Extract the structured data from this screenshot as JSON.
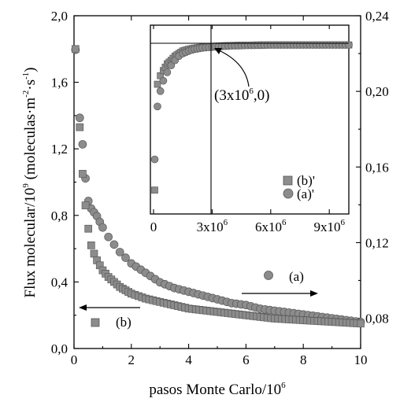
{
  "chart_data": {
    "type": "scatter",
    "xlabel": "pasos Monte Carlo/10",
    "xlabel_sup": "6",
    "ylabel_left": "Flux molecular/10",
    "ylabel_left_sup": "9",
    "ylabel_left_units": "(moleculas·m",
    "ylabel_left_units_sup1": "-2",
    "ylabel_left_units_mid": "·s",
    "ylabel_left_units_sup2": "-1",
    "ylabel_left_units_end": ")",
    "xlim": [
      0,
      10
    ],
    "ylim_left": [
      0,
      2.0
    ],
    "ylim_right": [
      0.064,
      0.24
    ],
    "x_ticks": [
      "0",
      "2",
      "4",
      "6",
      "8",
      "10"
    ],
    "y_left_ticks": [
      "0,0",
      "0,4",
      "0,8",
      "1,2",
      "1,6",
      "2,0"
    ],
    "y_right_ticks": [
      "0,08",
      "0,12",
      "0,16",
      "0,20",
      "0,24"
    ],
    "series": [
      {
        "name": "(a)",
        "marker": "circle",
        "axis": "right",
        "color": "#8c8c8c",
        "points": [
          [
            0.05,
            0.222
          ],
          [
            0.2,
            0.186
          ],
          [
            0.3,
            0.172
          ],
          [
            0.4,
            0.154
          ],
          [
            0.5,
            0.142
          ],
          [
            0.6,
            0.138
          ],
          [
            0.7,
            0.136
          ],
          [
            0.8,
            0.134
          ],
          [
            0.9,
            0.131
          ],
          [
            1.0,
            0.128
          ],
          [
            1.2,
            0.123
          ],
          [
            1.4,
            0.119
          ],
          [
            1.6,
            0.115
          ],
          [
            1.8,
            0.112
          ],
          [
            2.0,
            0.109
          ],
          [
            2.5,
            0.104
          ],
          [
            3.0,
            0.099
          ],
          [
            3.5,
            0.096
          ],
          [
            4.0,
            0.094
          ],
          [
            4.5,
            0.092
          ],
          [
            5.0,
            0.09
          ],
          [
            5.5,
            0.088
          ],
          [
            6.0,
            0.087
          ],
          [
            6.5,
            0.085
          ],
          [
            7.0,
            0.084
          ],
          [
            7.5,
            0.083
          ],
          [
            8.0,
            0.082
          ],
          [
            8.5,
            0.081
          ],
          [
            9.0,
            0.08
          ],
          [
            9.5,
            0.079
          ],
          [
            10.0,
            0.078
          ]
        ]
      },
      {
        "name": "(b)",
        "marker": "square",
        "axis": "left",
        "color": "#8c8c8c",
        "points": [
          [
            0.05,
            1.8
          ],
          [
            0.2,
            1.33
          ],
          [
            0.3,
            1.05
          ],
          [
            0.4,
            0.86
          ],
          [
            0.5,
            0.72
          ],
          [
            0.6,
            0.62
          ],
          [
            0.7,
            0.57
          ],
          [
            0.8,
            0.53
          ],
          [
            0.9,
            0.5
          ],
          [
            1.0,
            0.47
          ],
          [
            1.2,
            0.43
          ],
          [
            1.4,
            0.4
          ],
          [
            1.6,
            0.37
          ],
          [
            1.8,
            0.35
          ],
          [
            2.0,
            0.33
          ],
          [
            2.5,
            0.3
          ],
          [
            3.0,
            0.28
          ],
          [
            3.5,
            0.26
          ],
          [
            4.0,
            0.24
          ],
          [
            4.5,
            0.23
          ],
          [
            5.0,
            0.22
          ],
          [
            5.5,
            0.21
          ],
          [
            6.0,
            0.2
          ],
          [
            6.5,
            0.19
          ],
          [
            7.0,
            0.18
          ],
          [
            7.5,
            0.175
          ],
          [
            8.0,
            0.17
          ],
          [
            8.5,
            0.165
          ],
          [
            9.0,
            0.16
          ],
          [
            9.5,
            0.155
          ],
          [
            10.0,
            0.15
          ]
        ]
      }
    ],
    "legend_main": [
      {
        "label": "(a)",
        "marker": "circle"
      },
      {
        "label": "(b)",
        "marker": "square"
      }
    ],
    "inset": {
      "xlim": [
        0,
        10000000
      ],
      "x_ticks": [
        {
          "base": "0",
          "sup": ""
        },
        {
          "base": "3x10",
          "sup": "6"
        },
        {
          "base": "6x10",
          "sup": "6"
        },
        {
          "base": "9x10",
          "sup": "6"
        }
      ],
      "annotation_base": "(3x10",
      "annotation_sup": "6",
      "annotation_end": ",0)",
      "legend": [
        {
          "label": "(b)'",
          "marker": "square"
        },
        {
          "label": "(a)'",
          "marker": "circle"
        }
      ],
      "series": [
        {
          "name": "(b)'",
          "marker": "square",
          "points": [
            [
              60000,
              0.14
            ],
            [
              200000,
              0.76
            ],
            [
              350000,
              0.81
            ],
            [
              500000,
              0.84
            ],
            [
              700000,
              0.88
            ],
            [
              900000,
              0.9
            ],
            [
              1100000,
              0.925
            ],
            [
              1300000,
              0.94
            ],
            [
              1500000,
              0.955
            ],
            [
              1800000,
              0.965
            ],
            [
              2100000,
              0.972
            ],
            [
              2500000,
              0.978
            ],
            [
              3000000,
              0.982
            ],
            [
              3500000,
              0.985
            ],
            [
              4000000,
              0.987
            ],
            [
              4500000,
              0.988
            ],
            [
              5000000,
              0.989
            ],
            [
              5500000,
              0.99
            ],
            [
              6000000,
              0.99
            ],
            [
              6500000,
              0.99
            ],
            [
              7000000,
              0.99
            ],
            [
              7500000,
              0.99
            ],
            [
              8000000,
              0.99
            ],
            [
              8500000,
              0.99
            ],
            [
              9000000,
              0.99
            ],
            [
              9500000,
              0.99
            ],
            [
              10000000,
              0.99
            ]
          ]
        },
        {
          "name": "(a)'",
          "marker": "circle",
          "points": [
            [
              60000,
              0.32
            ],
            [
              200000,
              0.63
            ],
            [
              350000,
              0.72
            ],
            [
              500000,
              0.78
            ],
            [
              700000,
              0.83
            ],
            [
              900000,
              0.87
            ],
            [
              1100000,
              0.9
            ],
            [
              1300000,
              0.925
            ],
            [
              1500000,
              0.94
            ],
            [
              1800000,
              0.955
            ],
            [
              2100000,
              0.965
            ],
            [
              2500000,
              0.973
            ],
            [
              3000000,
              0.978
            ],
            [
              3500000,
              0.982
            ],
            [
              4000000,
              0.985
            ],
            [
              4500000,
              0.987
            ],
            [
              5000000,
              0.988
            ],
            [
              5500000,
              0.989
            ],
            [
              6000000,
              0.99
            ],
            [
              6500000,
              0.99
            ],
            [
              7000000,
              0.99
            ],
            [
              7500000,
              0.99
            ],
            [
              8000000,
              0.99
            ],
            [
              8500000,
              0.99
            ],
            [
              9000000,
              0.99
            ],
            [
              9500000,
              0.99
            ],
            [
              10000000,
              0.99
            ]
          ]
        }
      ]
    }
  }
}
